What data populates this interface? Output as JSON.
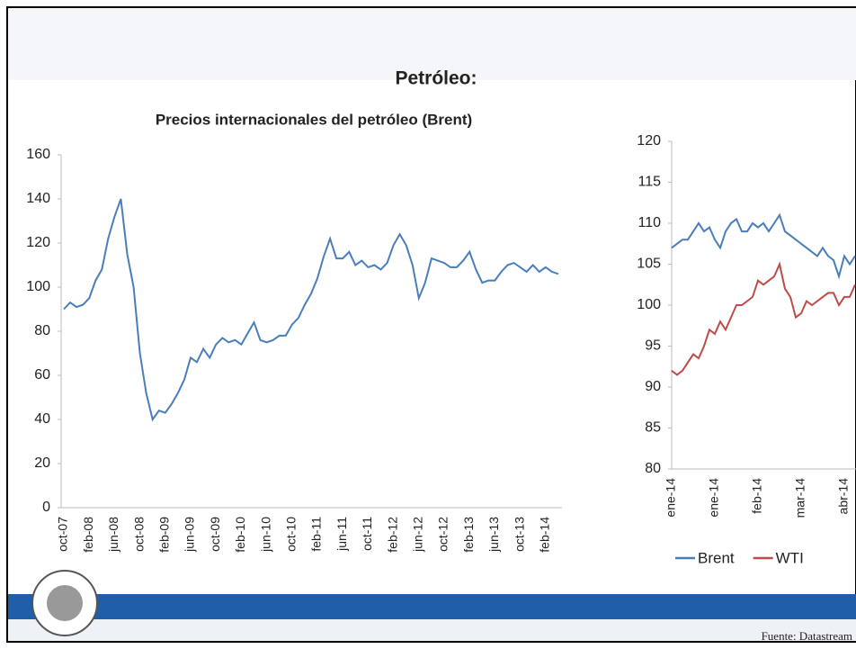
{
  "title": "Petróleo:",
  "source": "Fuente: Datastream",
  "chart_data": [
    {
      "type": "line",
      "title": "Precios internacionales del petróleo (Brent)",
      "color": "#4a7ebb",
      "categories": [
        "oct-07",
        null,
        null,
        null,
        "feb-08",
        null,
        null,
        null,
        "jun-08",
        null,
        null,
        null,
        "oct-08",
        null,
        null,
        null,
        "feb-09",
        null,
        null,
        null,
        "jun-09",
        null,
        null,
        null,
        "oct-09",
        null,
        null,
        null,
        "feb-10",
        null,
        null,
        null,
        "jun-10",
        null,
        null,
        null,
        "oct-10",
        null,
        null,
        null,
        "feb-11",
        null,
        null,
        null,
        "jun-11",
        null,
        null,
        null,
        "oct-11",
        null,
        null,
        null,
        "feb-12",
        null,
        null,
        null,
        "jun-12",
        null,
        null,
        null,
        "oct-12",
        null,
        null,
        null,
        "feb-13",
        null,
        null,
        null,
        "jun-13",
        null,
        null,
        null,
        "oct-13",
        null,
        null,
        null,
        "feb-14",
        null,
        null
      ],
      "values": [
        90,
        93,
        91,
        92,
        95,
        103,
        108,
        122,
        132,
        140,
        115,
        100,
        70,
        52,
        40,
        44,
        43,
        47,
        52,
        58,
        68,
        66,
        72,
        68,
        74,
        77,
        75,
        76,
        74,
        79,
        84,
        76,
        75,
        76,
        78,
        78,
        83,
        86,
        92,
        97,
        104,
        114,
        122,
        113,
        113,
        116,
        110,
        112,
        109,
        110,
        108,
        111,
        119,
        124,
        119,
        110,
        95,
        102,
        113,
        112,
        111,
        109,
        109,
        112,
        116,
        108,
        102,
        103,
        103,
        107,
        110,
        111,
        109,
        107,
        110,
        107,
        109,
        107,
        106
      ],
      "ylim": [
        0,
        160
      ],
      "yticks": [
        0,
        20,
        40,
        60,
        80,
        100,
        120,
        140,
        160
      ]
    },
    {
      "type": "line",
      "categories": [
        "ene-14",
        null,
        null,
        null,
        null,
        null,
        null,
        null,
        "ene-14",
        null,
        null,
        null,
        null,
        null,
        null,
        null,
        "feb-14",
        null,
        null,
        null,
        null,
        null,
        null,
        null,
        "mar-14",
        null,
        null,
        null,
        null,
        null,
        null,
        null,
        "abr-14",
        null,
        null
      ],
      "series": [
        {
          "name": "Brent",
          "color": "#4a7ebb",
          "values": [
            107,
            107.5,
            108,
            108,
            109,
            110,
            109,
            109.5,
            108,
            107,
            109,
            110,
            110.5,
            109,
            109,
            110,
            109.5,
            110,
            109,
            110,
            111,
            109,
            108.5,
            108,
            107.5,
            107,
            106.5,
            106,
            107,
            106,
            105.5,
            103.5,
            106,
            105,
            106
          ]
        },
        {
          "name": "WTI",
          "color": "#be4b48",
          "values": [
            92,
            91.5,
            92,
            93,
            94,
            93.5,
            95,
            97,
            96.5,
            98,
            97,
            98.5,
            100,
            100,
            100.5,
            101,
            103,
            102.5,
            103,
            103.5,
            105,
            102,
            101,
            98.5,
            99,
            100.5,
            100,
            100.5,
            101,
            101.5,
            101.5,
            100,
            101,
            101,
            102.5
          ]
        }
      ],
      "ylim": [
        80,
        120
      ],
      "yticks": [
        80,
        85,
        90,
        95,
        100,
        105,
        110,
        115,
        120
      ],
      "legend": "bottom"
    }
  ]
}
